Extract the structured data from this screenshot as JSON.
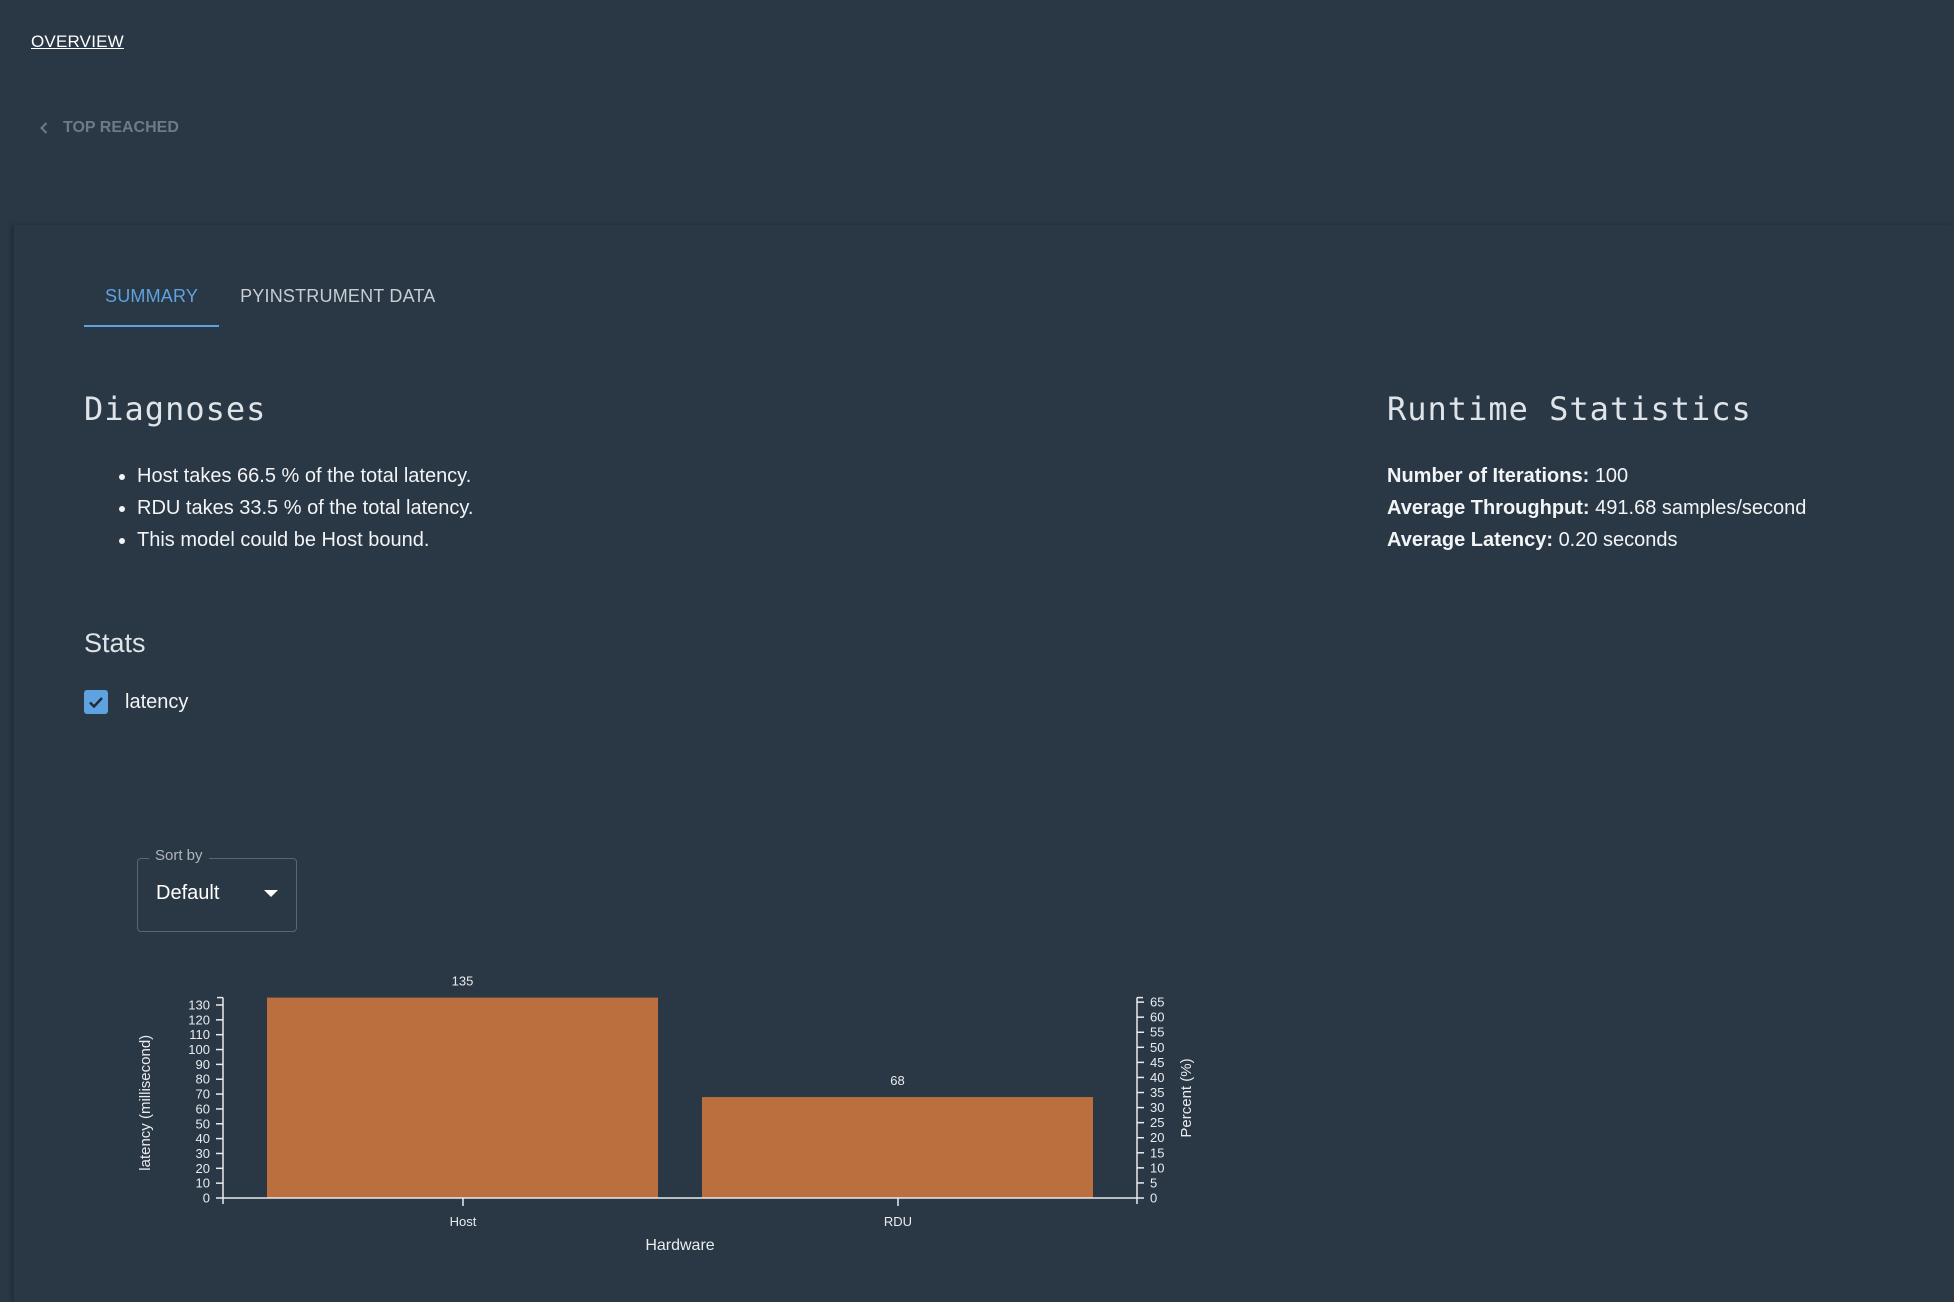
{
  "nav": {
    "overview_link": "OVERVIEW",
    "back_label": "TOP REACHED",
    "back_icon": "chevron-left-icon"
  },
  "tabs": [
    {
      "label": "SUMMARY",
      "active": true
    },
    {
      "label": "PYINSTRUMENT DATA",
      "active": false
    }
  ],
  "diagnoses": {
    "title": "Diagnoses",
    "items": [
      "Host takes 66.5 % of the total latency.",
      "RDU takes 33.5 % of the total latency.",
      "This model could be Host bound."
    ]
  },
  "runtime": {
    "title": "Runtime Statistics",
    "rows": [
      {
        "label": "Number of Iterations:",
        "value": "100"
      },
      {
        "label": "Average Throughput:",
        "value": "491.68 samples/second"
      },
      {
        "label": "Average Latency:",
        "value": "0.20 seconds"
      }
    ]
  },
  "stats": {
    "title": "Stats",
    "checkbox": {
      "label": "latency",
      "checked": true
    }
  },
  "sort": {
    "legend": "Sort by",
    "value": "Default"
  },
  "colors": {
    "background": "#2a3744",
    "accent": "#5fa2e0",
    "bar": "#bb6f3e"
  },
  "chart_data": {
    "type": "bar",
    "categories": [
      "Host",
      "RDU"
    ],
    "values": [
      135,
      68
    ],
    "value_labels": [
      "135",
      "68"
    ],
    "xlabel": "Hardware",
    "ylabel": "latency (millisecond)",
    "ylabel_right": "Percent (%)",
    "ylim": [
      0,
      135
    ],
    "yticks": [
      0,
      10,
      20,
      30,
      40,
      50,
      60,
      70,
      80,
      90,
      100,
      110,
      120,
      130
    ],
    "ylim_right": [
      0,
      66.5
    ],
    "yticks_right": [
      0,
      5,
      10,
      15,
      20,
      25,
      30,
      35,
      40,
      45,
      50,
      55,
      60,
      65
    ],
    "grid": false,
    "legend": "none"
  }
}
